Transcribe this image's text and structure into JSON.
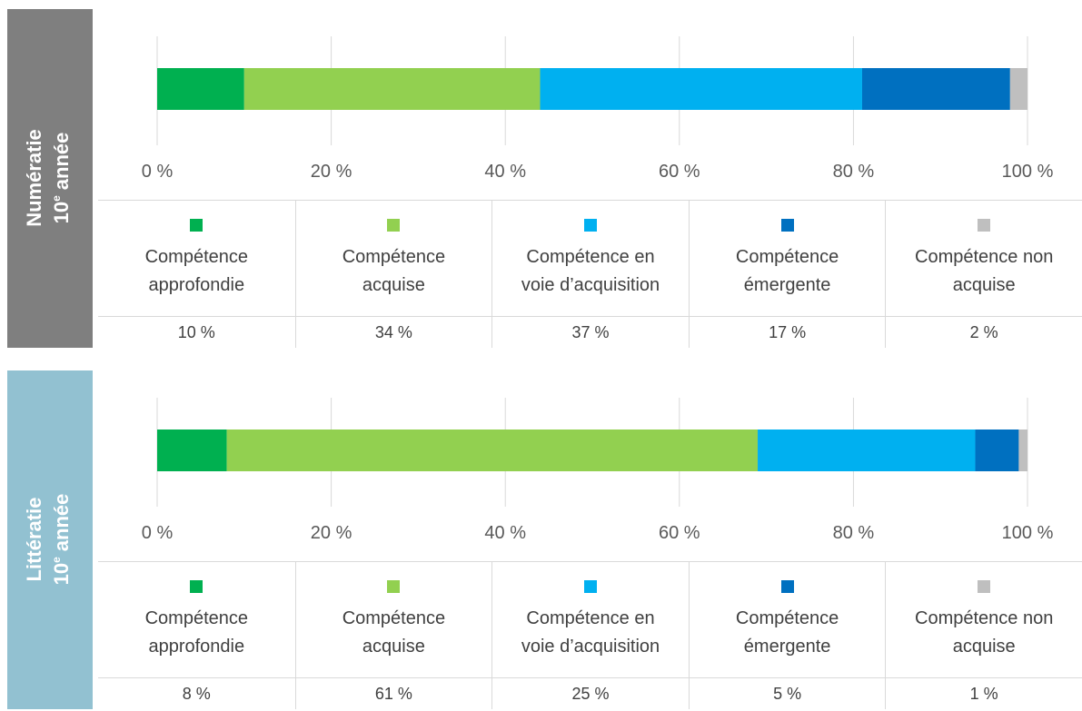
{
  "chart_data": [
    {
      "type": "stacked-bar",
      "title": "Numératie",
      "subtitle": {
        "number": "10",
        "suffix": "e",
        "text": "année"
      },
      "panel_color": "#7f7f7f",
      "xlim": [
        0,
        100
      ],
      "xticks": [
        {
          "value": 0,
          "label": "0 %"
        },
        {
          "value": 20,
          "label": "20 %"
        },
        {
          "value": 40,
          "label": "40 %"
        },
        {
          "value": 60,
          "label": "60 %"
        },
        {
          "value": 80,
          "label": "80 %"
        },
        {
          "value": 100,
          "label": "100 %"
        }
      ],
      "grid": true,
      "series": [
        {
          "name": "Compétence approfondie",
          "color": "#00b050",
          "values": [
            10
          ],
          "value_labels": [
            "10 %"
          ]
        },
        {
          "name": "Compétence acquise",
          "color": "#92d050",
          "values": [
            34
          ],
          "value_labels": [
            "34 %"
          ]
        },
        {
          "name": "Compétence en voie d’acquisition",
          "color": "#00b0f0",
          "values": [
            37
          ],
          "value_labels": [
            "37 %"
          ]
        },
        {
          "name": "Compétence émergente",
          "color": "#0070c0",
          "values": [
            17
          ],
          "value_labels": [
            "17 %"
          ]
        },
        {
          "name": "Compétence non acquise",
          "color": "#bfbfbf",
          "values": [
            2
          ],
          "value_labels": [
            "2 %"
          ]
        }
      ]
    },
    {
      "type": "stacked-bar",
      "title": "Littératie",
      "subtitle": {
        "number": "10",
        "suffix": "e",
        "text": "année"
      },
      "panel_color": "#92c1d1",
      "xlim": [
        0,
        100
      ],
      "xticks": [
        {
          "value": 0,
          "label": "0 %"
        },
        {
          "value": 20,
          "label": "20 %"
        },
        {
          "value": 40,
          "label": "40 %"
        },
        {
          "value": 60,
          "label": "60 %"
        },
        {
          "value": 80,
          "label": "80 %"
        },
        {
          "value": 100,
          "label": "100 %"
        }
      ],
      "grid": true,
      "series": [
        {
          "name": "Compétence approfondie",
          "color": "#00b050",
          "values": [
            8
          ],
          "value_labels": [
            "8 %"
          ]
        },
        {
          "name": "Compétence acquise",
          "color": "#92d050",
          "values": [
            61
          ],
          "value_labels": [
            "61 %"
          ]
        },
        {
          "name": "Compétence en voie d’acquisition",
          "color": "#00b0f0",
          "values": [
            25
          ],
          "value_labels": [
            "25 %"
          ]
        },
        {
          "name": "Compétence émergente",
          "color": "#0070c0",
          "values": [
            5
          ],
          "value_labels": [
            "5 %"
          ]
        },
        {
          "name": "Compétence non acquise",
          "color": "#bfbfbf",
          "values": [
            1
          ],
          "value_labels": [
            "1 %"
          ]
        }
      ]
    }
  ]
}
